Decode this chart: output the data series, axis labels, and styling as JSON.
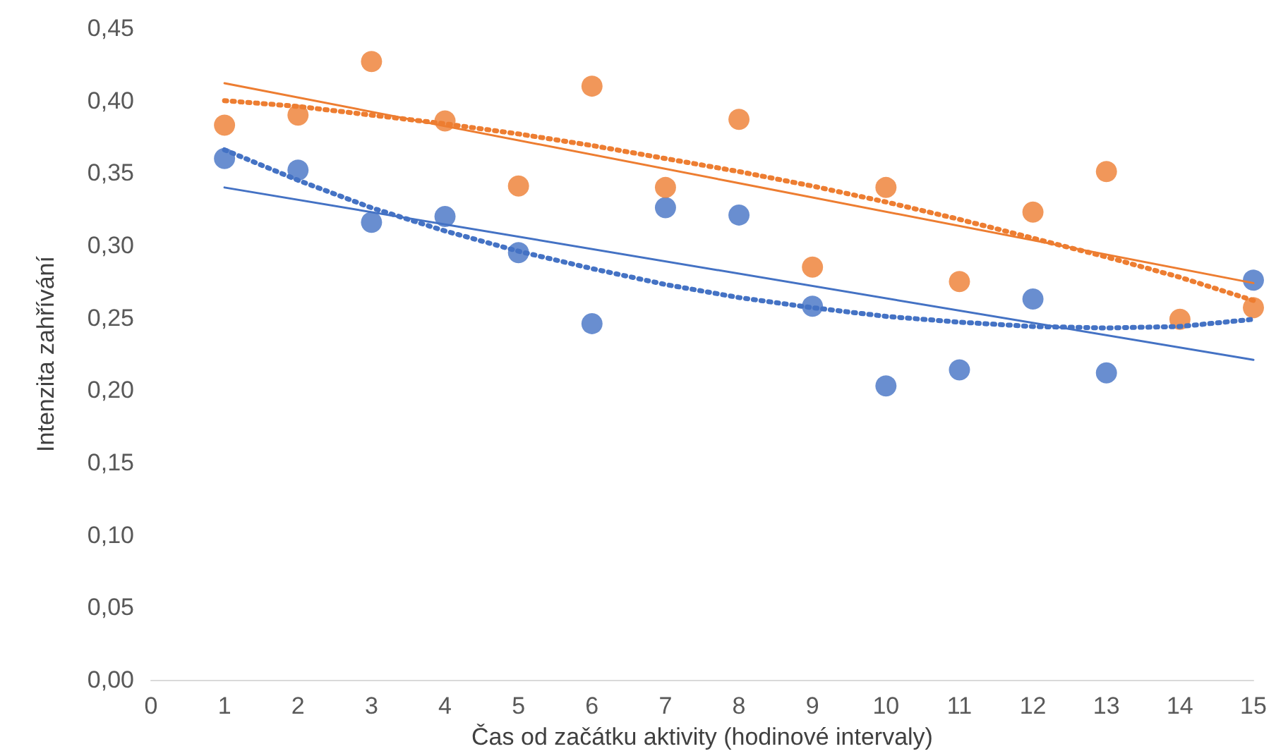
{
  "chart_data": {
    "type": "scatter",
    "xlabel": "Čas od začátku aktivity (hodinové intervaly)",
    "ylabel": "Intenzita zahřívání",
    "x": [
      1,
      2,
      3,
      4,
      5,
      6,
      7,
      8,
      9,
      10,
      11,
      12,
      13,
      14,
      15
    ],
    "xlim": [
      0,
      15
    ],
    "xticks": [
      0,
      1,
      2,
      3,
      4,
      5,
      6,
      7,
      8,
      9,
      10,
      11,
      12,
      13,
      14,
      15
    ],
    "ylim": [
      0,
      0.45
    ],
    "yticks": [
      {
        "value": 0,
        "label": "0,00"
      },
      {
        "value": 0.05,
        "label": "0,05"
      },
      {
        "value": 0.1,
        "label": "0,10"
      },
      {
        "value": 0.15,
        "label": "0,15"
      },
      {
        "value": 0.2,
        "label": "0,20"
      },
      {
        "value": 0.25,
        "label": "0,25"
      },
      {
        "value": 0.3,
        "label": "0,30"
      },
      {
        "value": 0.35,
        "label": "0,35"
      },
      {
        "value": 0.4,
        "label": "0,40"
      },
      {
        "value": 0.45,
        "label": "0,45"
      }
    ],
    "grid": false,
    "marker": "circle",
    "series": [
      {
        "type": "line",
        "x": [
          1,
          15
        ],
        "values": [
          0.34,
          0.221
        ],
        "color": "#4472c4",
        "marker": "none",
        "line_style": "solid"
      },
      {
        "type": "line",
        "x": [
          1,
          15
        ],
        "values": [
          0.412,
          0.274
        ],
        "color": "#ed7d31",
        "marker": "none",
        "line_style": "solid"
      },
      {
        "type": "line",
        "x": [
          1,
          2,
          3,
          4,
          5,
          6,
          7,
          8,
          9,
          10,
          11,
          12,
          13,
          14,
          15
        ],
        "values": [
          0.366,
          0.345,
          0.326,
          0.31,
          0.296,
          0.284,
          0.273,
          0.264,
          0.257,
          0.251,
          0.247,
          0.244,
          0.243,
          0.244,
          0.249
        ],
        "color": "#4472c4",
        "marker": "none",
        "line_style": "dotted"
      },
      {
        "type": "line",
        "x": [
          1,
          2,
          3,
          4,
          5,
          6,
          7,
          8,
          9,
          10,
          11,
          12,
          13,
          14,
          15
        ],
        "values": [
          0.4,
          0.396,
          0.39,
          0.384,
          0.377,
          0.369,
          0.36,
          0.351,
          0.341,
          0.33,
          0.318,
          0.305,
          0.292,
          0.278,
          0.262
        ],
        "color": "#ed7d31",
        "marker": "none",
        "line_style": "dotted"
      },
      {
        "color": "#4472c4",
        "values": [
          0.36,
          0.352,
          0.316,
          0.32,
          0.295,
          0.246,
          0.326,
          0.321,
          0.258,
          0.203,
          0.214,
          0.263,
          0.212,
          null,
          0.276
        ]
      },
      {
        "color": "#ed7d31",
        "values": [
          0.383,
          0.39,
          0.427,
          0.386,
          0.341,
          0.41,
          0.34,
          0.387,
          0.285,
          0.34,
          0.275,
          0.323,
          0.351,
          0.249,
          0.257
        ]
      }
    ]
  }
}
